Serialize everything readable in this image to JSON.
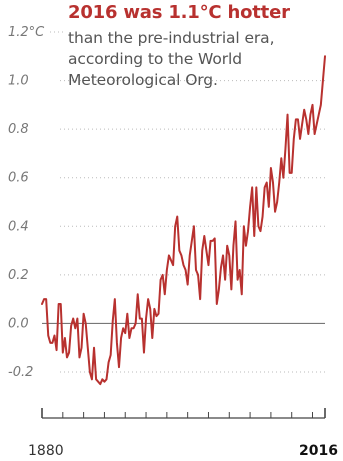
{
  "headline": {
    "title": "2016 was 1.1°C hotter",
    "subtitle": "than the pre-industrial era, according to the World Meteorological Org."
  },
  "colors": {
    "line": "#b8312f",
    "title": "#b8312f",
    "zero_line": "#777777",
    "grid": "#bbbbbb",
    "axis": "#444444"
  },
  "chart_data": {
    "type": "line",
    "title": "2016 was 1.1°C hotter",
    "subtitle": "than the pre-industrial era, according to the World Meteorological Org.",
    "xlabel": "",
    "ylabel": "",
    "unit": "°C",
    "xlim": [
      1880,
      2016
    ],
    "ylim": [
      -0.3,
      1.2
    ],
    "y_ticks": [
      {
        "value": 1.2,
        "label": "1.2°C"
      },
      {
        "value": 1.0,
        "label": "1.0"
      },
      {
        "value": 0.8,
        "label": "0.8"
      },
      {
        "value": 0.6,
        "label": "0.6"
      },
      {
        "value": 0.4,
        "label": "0.4"
      },
      {
        "value": 0.2,
        "label": "0.2"
      },
      {
        "value": 0.0,
        "label": "0.0"
      },
      {
        "value": -0.2,
        "label": "-0.2"
      }
    ],
    "x_tick_labels": [
      {
        "value": 1880,
        "label": "1880",
        "bold": false
      },
      {
        "value": 2016,
        "label": "2016",
        "bold": true
      }
    ],
    "x_minor_ticks": [
      1880,
      1890,
      1900,
      1910,
      1920,
      1930,
      1940,
      1950,
      1960,
      1970,
      1980,
      1990,
      2000,
      2010,
      2016
    ],
    "grid": true,
    "legend": "none",
    "series": [
      {
        "x": [
          1880,
          1881,
          1882,
          1883,
          1884,
          1885,
          1886,
          1887,
          1888,
          1889,
          1890,
          1891,
          1892,
          1893,
          1894,
          1895,
          1896,
          1897,
          1898,
          1899,
          1900,
          1901,
          1902,
          1903,
          1904,
          1905,
          1906,
          1907,
          1908,
          1909,
          1910,
          1911,
          1912,
          1913,
          1914,
          1915,
          1916,
          1917,
          1918,
          1919,
          1920,
          1921,
          1922,
          1923,
          1924,
          1925,
          1926,
          1927,
          1928,
          1929,
          1930,
          1931,
          1932,
          1933,
          1934,
          1935,
          1936,
          1937,
          1938,
          1939,
          1940,
          1941,
          1942,
          1943,
          1944,
          1945,
          1946,
          1947,
          1948,
          1949,
          1950,
          1951,
          1952,
          1953,
          1954,
          1955,
          1956,
          1957,
          1958,
          1959,
          1960,
          1961,
          1962,
          1963,
          1964,
          1965,
          1966,
          1967,
          1968,
          1969,
          1970,
          1971,
          1972,
          1973,
          1974,
          1975,
          1976,
          1977,
          1978,
          1979,
          1980,
          1981,
          1982,
          1983,
          1984,
          1985,
          1986,
          1987,
          1988,
          1989,
          1990,
          1991,
          1992,
          1993,
          1994,
          1995,
          1996,
          1997,
          1998,
          1999,
          2000,
          2001,
          2002,
          2003,
          2004,
          2005,
          2006,
          2007,
          2008,
          2009,
          2010,
          2011,
          2012,
          2013,
          2014,
          2015,
          2016
        ],
        "values": [
          0.08,
          0.1,
          0.1,
          -0.05,
          -0.08,
          -0.08,
          -0.05,
          -0.11,
          0.08,
          0.08,
          -0.12,
          -0.06,
          -0.14,
          -0.12,
          -0.01,
          0.02,
          -0.02,
          0.02,
          -0.14,
          -0.1,
          0.04,
          0.0,
          -0.1,
          -0.2,
          -0.23,
          -0.1,
          -0.23,
          -0.24,
          -0.25,
          -0.23,
          -0.24,
          -0.23,
          -0.16,
          -0.13,
          0.01,
          0.1,
          -0.08,
          -0.18,
          -0.06,
          -0.02,
          -0.04,
          0.04,
          -0.06,
          -0.02,
          -0.02,
          0.0,
          0.12,
          0.02,
          0.02,
          -0.12,
          0.02,
          0.1,
          0.06,
          -0.06,
          0.06,
          0.03,
          0.04,
          0.18,
          0.2,
          0.12,
          0.22,
          0.28,
          0.26,
          0.24,
          0.4,
          0.44,
          0.3,
          0.28,
          0.24,
          0.22,
          0.16,
          0.28,
          0.34,
          0.4,
          0.22,
          0.2,
          0.1,
          0.3,
          0.36,
          0.3,
          0.24,
          0.34,
          0.34,
          0.35,
          0.08,
          0.14,
          0.23,
          0.28,
          0.18,
          0.32,
          0.28,
          0.14,
          0.32,
          0.42,
          0.18,
          0.22,
          0.12,
          0.4,
          0.32,
          0.38,
          0.48,
          0.56,
          0.36,
          0.56,
          0.4,
          0.38,
          0.44,
          0.56,
          0.58,
          0.48,
          0.64,
          0.58,
          0.46,
          0.5,
          0.58,
          0.68,
          0.6,
          0.72,
          0.86,
          0.62,
          0.62,
          0.76,
          0.84,
          0.84,
          0.76,
          0.82,
          0.88,
          0.84,
          0.78,
          0.86,
          0.9,
          0.78,
          0.82,
          0.86,
          0.9,
          1.0,
          1.1
        ]
      }
    ]
  }
}
